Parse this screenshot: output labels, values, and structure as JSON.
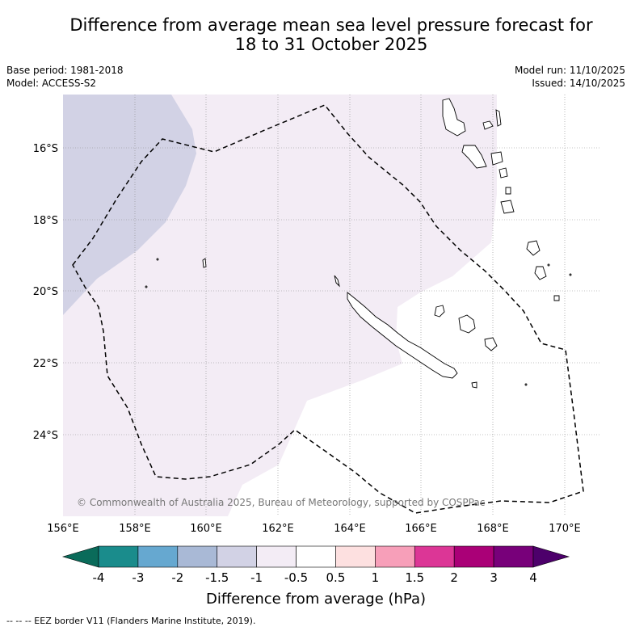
{
  "title": {
    "line1": "Difference from average mean sea level pressure forecast for",
    "line2": "18 to 31 October 2025"
  },
  "meta": {
    "base_period": "Base period: 1981-2018",
    "model": "Model: ACCESS-S2",
    "model_run": "Model run: 11/10/2025",
    "issued": "Issued: 14/10/2025"
  },
  "map": {
    "copyright": "© Commonwealth of Australia 2025, Bureau of Meteorology, supported by COSPPac",
    "lon_ticks": [
      "156°E",
      "158°E",
      "160°E",
      "162°E",
      "164°E",
      "166°E",
      "168°E",
      "170°E"
    ],
    "lat_ticks": [
      "16°S",
      "18°S",
      "20°S",
      "22°S",
      "24°S"
    ],
    "extent": {
      "lon_min": 156.0,
      "lon_max": 171.0,
      "lat_min": -26.2,
      "lat_max": -14.5
    }
  },
  "colorbar": {
    "labels": [
      "-4",
      "-3",
      "-2",
      "-1.5",
      "-1",
      "-0.5",
      "0.5",
      "1",
      "1.5",
      "2",
      "3",
      "4"
    ],
    "colors": [
      "#1a8c8c",
      "#66a8d0",
      "#a9b9d6",
      "#d2d2e5",
      "#f3ecf5",
      "#ffffff",
      "#fde0e0",
      "#f79fb9",
      "#dc3696",
      "#aa0077",
      "#78007a"
    ],
    "under_color": "#0a6b5a",
    "over_color": "#4d006b",
    "label": "Difference from average (hPa)"
  },
  "legend": {
    "eez_line": "--  --  -- EEZ border V11 (Flanders Marine Institute, 2019)."
  }
}
